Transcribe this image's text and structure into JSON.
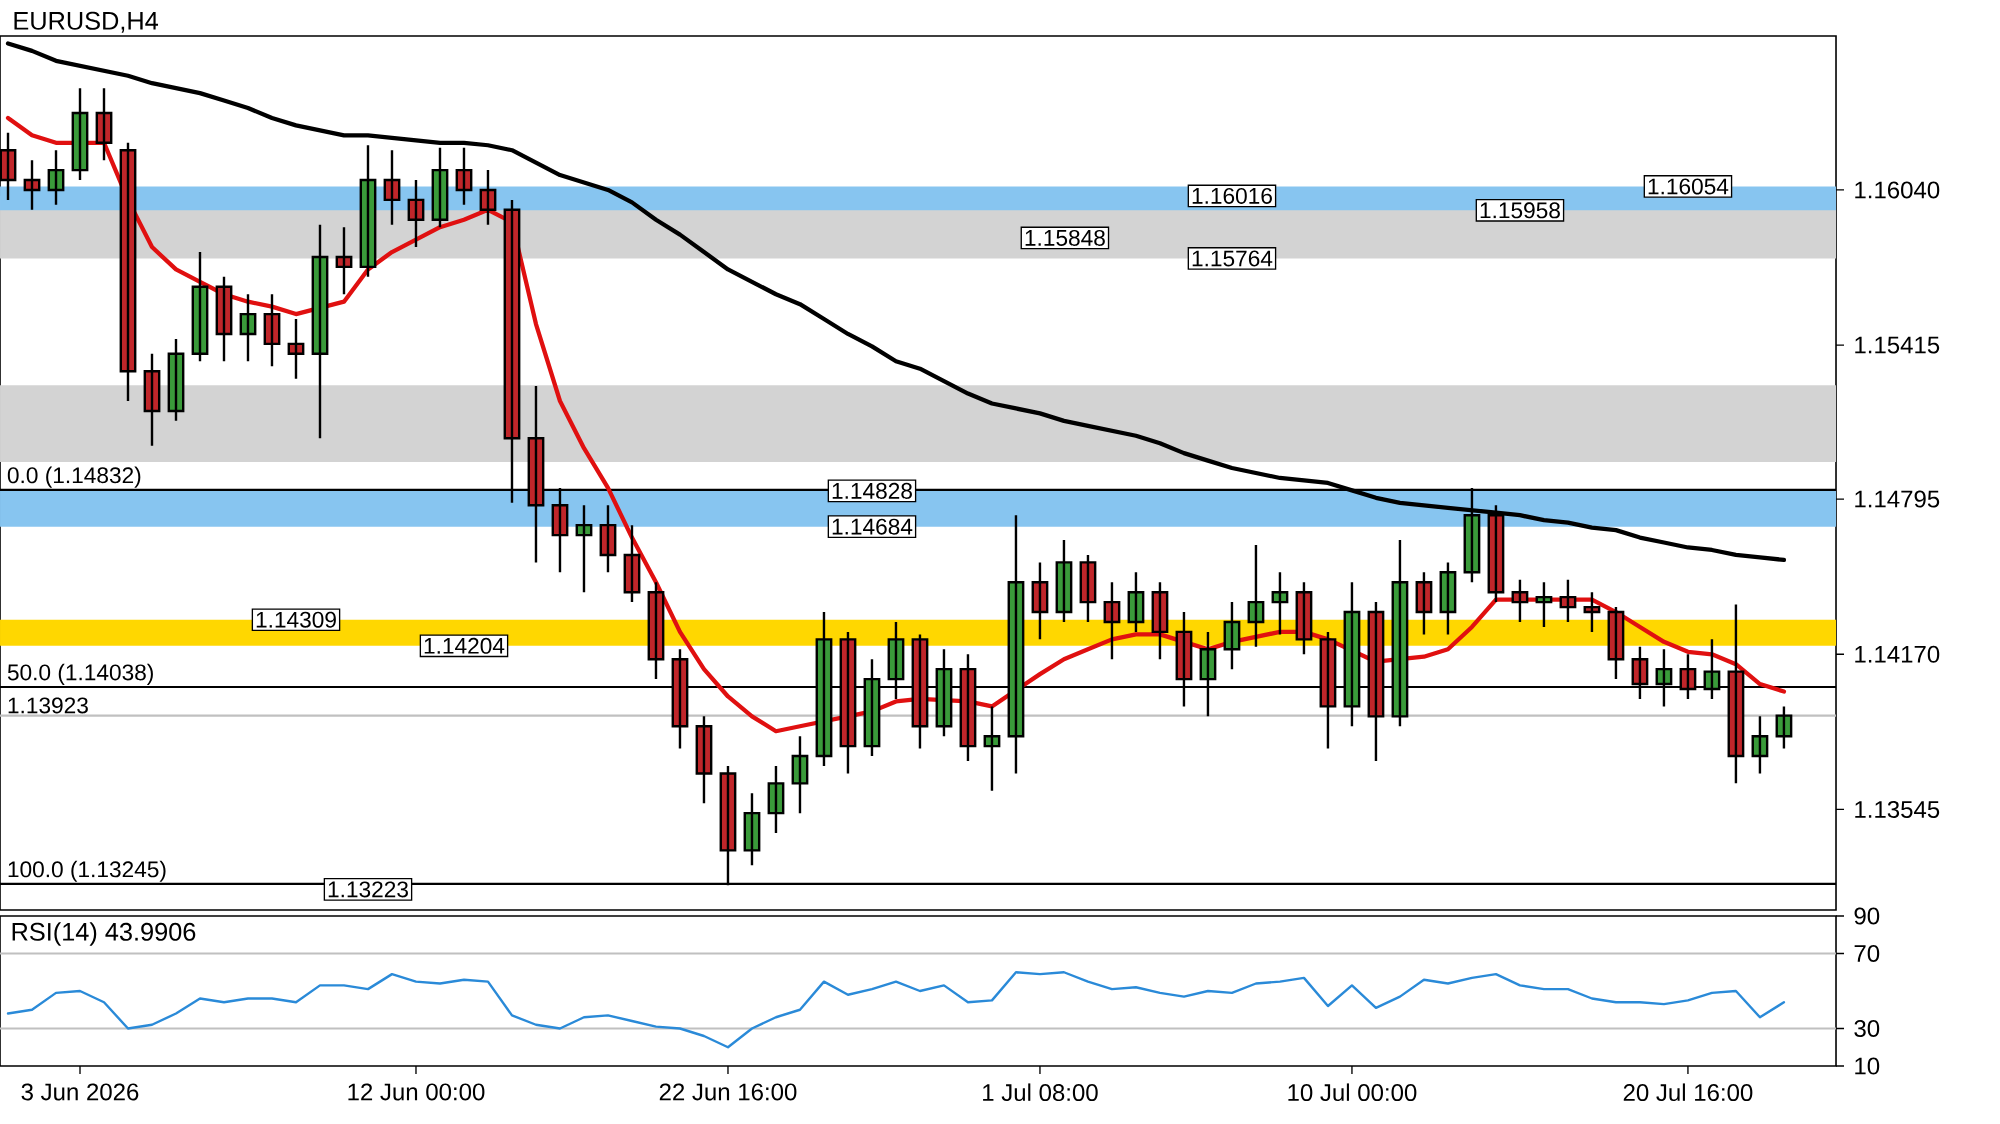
{
  "chart_data": [
    {
      "type": "candlestick",
      "title": "EURUSD,H4",
      "categories": [
        null,
        null,
        null,
        null,
        null,
        null,
        null,
        null,
        null,
        null,
        null,
        null,
        null,
        null,
        null,
        null,
        null,
        null,
        null,
        null,
        null,
        null,
        null,
        null,
        null,
        null,
        null,
        null,
        null,
        null,
        null,
        null,
        null,
        null,
        null,
        null,
        null,
        null,
        null,
        null,
        null,
        null,
        null,
        null,
        null,
        null,
        null,
        null,
        null,
        null,
        null,
        null,
        null,
        null,
        null,
        null,
        null,
        null,
        null,
        null,
        null,
        null,
        null,
        null,
        null,
        null,
        null,
        null,
        null,
        null,
        null,
        null,
        null,
        null,
        null
      ],
      "tick_labels": "y",
      "ohlc": [
        [
          1.162,
          1.1627,
          1.16,
          1.1608
        ],
        [
          1.1608,
          1.1616,
          1.1596,
          1.1604
        ],
        [
          1.1604,
          1.162,
          1.1598,
          1.1612
        ],
        [
          1.1612,
          1.1645,
          1.1608,
          1.1635
        ],
        [
          1.1635,
          1.1645,
          1.1616,
          1.1623
        ],
        [
          1.162,
          1.1623,
          1.1519,
          1.1531
        ],
        [
          1.1531,
          1.1538,
          1.1501,
          1.1515
        ],
        [
          1.1515,
          1.1544,
          1.1511,
          1.1538
        ],
        [
          1.1538,
          1.1579,
          1.1535,
          1.1565
        ],
        [
          1.1565,
          1.1569,
          1.1535,
          1.1546
        ],
        [
          1.1546,
          1.1562,
          1.1535,
          1.1554
        ],
        [
          1.1554,
          1.1562,
          1.1533,
          1.1542
        ],
        [
          1.1542,
          1.1552,
          1.1528,
          1.1538
        ],
        [
          1.1538,
          1.159,
          1.1504,
          1.1577
        ],
        [
          1.1577,
          1.1589,
          1.1562,
          1.1573
        ],
        [
          1.1573,
          1.1622,
          1.1569,
          1.1608
        ],
        [
          1.1608,
          1.162,
          1.159,
          1.16
        ],
        [
          1.16,
          1.1608,
          1.1581,
          1.1592
        ],
        [
          1.1592,
          1.1621,
          1.1589,
          1.1612
        ],
        [
          1.1612,
          1.1621,
          1.1598,
          1.1604
        ],
        [
          1.1604,
          1.1612,
          1.159,
          1.1596
        ],
        [
          1.1596,
          1.16,
          1.1478,
          1.1504
        ],
        [
          1.1504,
          1.1525,
          1.1454,
          1.1477
        ],
        [
          1.1477,
          1.1484,
          1.145,
          1.1465
        ],
        [
          1.1465,
          1.1477,
          1.1442,
          1.1469
        ],
        [
          1.1469,
          1.1477,
          1.145,
          1.1457
        ],
        [
          1.1457,
          1.1469,
          1.1438,
          1.1442
        ],
        [
          1.1442,
          1.1446,
          1.1407,
          1.1415
        ],
        [
          1.1415,
          1.1419,
          1.1379,
          1.1388
        ],
        [
          1.1388,
          1.1392,
          1.1357,
          1.1369
        ],
        [
          1.1369,
          1.1372,
          1.1324,
          1.1338
        ],
        [
          1.1338,
          1.1361,
          1.1332,
          1.1353
        ],
        [
          1.1353,
          1.1372,
          1.1345,
          1.1365
        ],
        [
          1.1365,
          1.1384,
          1.1353,
          1.1376
        ],
        [
          1.1376,
          1.1434,
          1.1372,
          1.1423
        ],
        [
          1.1423,
          1.1426,
          1.1369,
          1.138
        ],
        [
          1.138,
          1.1415,
          1.1376,
          1.1407
        ],
        [
          1.1407,
          1.143,
          1.1399,
          1.1423
        ],
        [
          1.1423,
          1.1425,
          1.1379,
          1.1388
        ],
        [
          1.1388,
          1.1419,
          1.1384,
          1.1411
        ],
        [
          1.1411,
          1.1417,
          1.1374,
          1.138
        ],
        [
          1.138,
          1.1396,
          1.1362,
          1.1384
        ],
        [
          1.1384,
          1.1473,
          1.1369,
          1.1446
        ],
        [
          1.1446,
          1.1454,
          1.1423,
          1.1434
        ],
        [
          1.1434,
          1.1463,
          1.143,
          1.1454
        ],
        [
          1.1454,
          1.1457,
          1.143,
          1.1438
        ],
        [
          1.1438,
          1.1446,
          1.1415,
          1.143
        ],
        [
          1.143,
          1.145,
          1.1426,
          1.1442
        ],
        [
          1.1442,
          1.1446,
          1.1415,
          1.1426
        ],
        [
          1.1426,
          1.1434,
          1.1396,
          1.1407
        ],
        [
          1.1407,
          1.1426,
          1.1392,
          1.1419
        ],
        [
          1.1419,
          1.1438,
          1.1411,
          1.143
        ],
        [
          1.143,
          1.1461,
          1.142,
          1.1438
        ],
        [
          1.1438,
          1.145,
          1.1425,
          1.1442
        ],
        [
          1.1442,
          1.1446,
          1.1417,
          1.1423
        ],
        [
          1.1423,
          1.1426,
          1.1379,
          1.1396
        ],
        [
          1.1396,
          1.1446,
          1.1388,
          1.1434
        ],
        [
          1.1434,
          1.1438,
          1.1374,
          1.1392
        ],
        [
          1.1392,
          1.1463,
          1.1388,
          1.1446
        ],
        [
          1.1446,
          1.145,
          1.1425,
          1.1434
        ],
        [
          1.1434,
          1.1454,
          1.1425,
          1.145
        ],
        [
          1.145,
          1.1484,
          1.1446,
          1.1473
        ],
        [
          1.1473,
          1.1477,
          1.1438,
          1.1442
        ],
        [
          1.1442,
          1.1447,
          1.143,
          1.1438
        ],
        [
          1.1438,
          1.1446,
          1.1428,
          1.144
        ],
        [
          1.144,
          1.1447,
          1.143,
          1.1436
        ],
        [
          1.1436,
          1.1442,
          1.1426,
          1.1434
        ],
        [
          1.1434,
          1.1436,
          1.1407,
          1.1415
        ],
        [
          1.1415,
          1.142,
          1.1399,
          1.1405
        ],
        [
          1.1405,
          1.1419,
          1.1396,
          1.1411
        ],
        [
          1.1411,
          1.1417,
          1.1399,
          1.1403
        ],
        [
          1.1403,
          1.1423,
          1.1399,
          1.141
        ],
        [
          1.141,
          1.1437,
          1.1365,
          1.1376
        ],
        [
          1.1376,
          1.1392,
          1.1369,
          1.1384
        ],
        [
          1.1384,
          1.1396,
          1.1379,
          1.13923
        ]
      ],
      "series": [
        {
          "type": "line",
          "color": "#e01010",
          "values": [
            1.1633,
            1.1626,
            1.1623,
            1.1623,
            1.1623,
            1.16,
            1.1581,
            1.1572,
            1.1567,
            1.1562,
            1.1559,
            1.1557,
            1.1554,
            null,
            1.1559,
            1.1572,
            1.1579,
            1.1584,
            1.1589,
            1.1592,
            1.1596,
            1.1591,
            1.155,
            1.1519,
            1.15,
            1.1484,
            1.1464,
            1.1446,
            1.1426,
            1.1411,
            1.14,
            1.1392,
            1.1386,
            1.1388,
            null,
            1.1392,
            1.1394,
            1.1398,
            1.1399,
            null,
            1.1398,
            1.1396,
            null,
            1.1409,
            1.1415,
            1.1419,
            1.1423,
            1.1425,
            1.1425,
            1.1422,
            1.1419,
            1.1422,
            1.1424,
            1.1426,
            1.1426,
            1.1423,
            null,
            1.1414,
            null,
            1.1416,
            1.1419,
            1.1428,
            1.1439,
            1.1439,
            1.1439,
            1.1439,
            1.1439,
            1.1434,
            1.1428,
            1.1422,
            1.1418,
            1.1417,
            1.1413,
            1.1405,
            1.1402
          ]
        },
        {
          "type": "line",
          "color": "#000000",
          "values": [
            1.1663,
            1.166,
            1.1656,
            1.1654,
            1.1652,
            1.165,
            1.1647,
            1.1645,
            1.1643,
            1.164,
            1.1637,
            1.1633,
            1.163,
            1.1628,
            1.1626,
            1.1626,
            1.1625,
            1.1624,
            1.1623,
            1.1623,
            1.1622,
            1.162,
            1.1615,
            1.161,
            1.1607,
            1.1604,
            1.1599,
            1.1592,
            1.1586,
            1.1579,
            1.1572,
            1.1567,
            1.1562,
            1.1558,
            1.1552,
            1.1546,
            1.1541,
            1.1535,
            1.1532,
            1.1527,
            1.1522,
            1.1518,
            1.1516,
            1.1514,
            1.1511,
            1.1509,
            1.1507,
            1.1505,
            1.1502,
            1.1498,
            1.1495,
            1.1492,
            1.149,
            1.1488,
            1.1487,
            1.1486,
            1.1483,
            1.148,
            1.1478,
            1.1477,
            1.1476,
            1.1475,
            1.1474,
            1.1473,
            1.1471,
            1.147,
            1.1468,
            1.1467,
            1.1464,
            1.1462,
            1.146,
            1.1459,
            1.1457,
            1.1456,
            1.1455
          ]
        }
      ],
      "ylim": [
        1.1314,
        1.1666
      ],
      "yticks": [
        1.13545,
        {
          "value": 1.1417,
          "label": "1.14170"
        },
        1.14795,
        1.15415,
        {
          "value": 1.1604,
          "label": "1.16040"
        }
      ],
      "bands": [
        {
          "axis": "y",
          "from": 1.15764,
          "to": 1.16016,
          "color": "#d3d3d3"
        },
        {
          "axis": "y",
          "from": 1.15958,
          "to": 1.16054,
          "color": "#87c5f0"
        },
        {
          "axis": "y",
          "from": 1.14944,
          "to": 1.15253,
          "color": "#d3d3d3"
        },
        {
          "axis": "y",
          "from": 1.14684,
          "to": 1.14828,
          "color": "#87c5f0"
        },
        {
          "axis": "y",
          "from": 1.14204,
          "to": 1.14309,
          "color": "#ffd700"
        }
      ],
      "ref_lines": [
        {
          "axis": "y",
          "value": 1.14832,
          "label": "0.0 (1.14832)",
          "color": "#000000"
        },
        {
          "axis": "y",
          "value": 1.14038,
          "label": "50.0 (1.14038)",
          "color": "#000000"
        },
        {
          "axis": "y",
          "value": 1.13245,
          "label": "100.0 (1.13245)",
          "color": "#000000"
        },
        {
          "axis": "y",
          "value": 1.13923,
          "label": "1.13923",
          "color": "#c0c0c0"
        }
      ],
      "annotations": [
        {
          "text": "1.16054",
          "y": 1.16054
        },
        {
          "text": "1.15958",
          "y": 1.15958
        },
        {
          "text": "1.16016",
          "y": 1.16016
        },
        "1.15848",
        {
          "text": "1.15764",
          "y": 1.15764
        },
        {
          "text": "1.14828",
          "y": 1.14828
        },
        {
          "text": "1.14684",
          "y": 1.14684
        },
        {
          "text": "1.14309",
          "y": 1.14309
        },
        {
          "text": "1.14204",
          "y": 1.14204
        },
        {
          "text": "1.13223",
          "y": 1.13223
        }
      ]
    },
    {
      "type": "line",
      "title": "RSI(14) 43.9906",
      "categories": [
        null,
        null,
        null,
        "3 Jun 2026",
        null,
        null,
        null,
        null,
        null,
        null,
        null,
        null,
        null,
        null,
        null,
        null,
        null,
        "12 Jun 00:00",
        null,
        null,
        null,
        null,
        null,
        null,
        null,
        null,
        null,
        null,
        null,
        null,
        "22 Jun 16:00",
        null,
        null,
        null,
        null,
        null,
        null,
        null,
        null,
        null,
        null,
        null,
        null,
        "1 Jul 08:00",
        null,
        null,
        null,
        null,
        null,
        null,
        null,
        null,
        null,
        null,
        null,
        null,
        "10 Jul 00:00",
        null,
        null,
        null,
        null,
        null,
        null,
        null,
        null,
        null,
        null,
        null,
        null,
        null,
        "20 Jul 16:00",
        null,
        null,
        null,
        null
      ],
      "series": [
        {
          "color": "#2a8ad8",
          "values": [
            38,
            40,
            49,
            50,
            44,
            30,
            32,
            38,
            46,
            44,
            46,
            46,
            44,
            53,
            53,
            51,
            59,
            55,
            54,
            56,
            55,
            37,
            32,
            30,
            36,
            37,
            34,
            31,
            30,
            26,
            20,
            30,
            36,
            40,
            55,
            48,
            51,
            55,
            50,
            53,
            44,
            45,
            60,
            59,
            60,
            55,
            51,
            52,
            49,
            47,
            50,
            49,
            54,
            55,
            57,
            42,
            53,
            41,
            47,
            56,
            54,
            57,
            59,
            53,
            51,
            51,
            46,
            44,
            44,
            43,
            45,
            49,
            50,
            36,
            44
          ]
        }
      ],
      "ylim": [
        10,
        90
      ],
      "yticks": [
        10,
        30,
        70,
        90
      ],
      "ref_lines": [
        {
          "axis": "y",
          "value": 30,
          "color": "#c0c0c0"
        },
        {
          "axis": "y",
          "value": 70,
          "color": "#c0c0c0"
        }
      ]
    }
  ]
}
